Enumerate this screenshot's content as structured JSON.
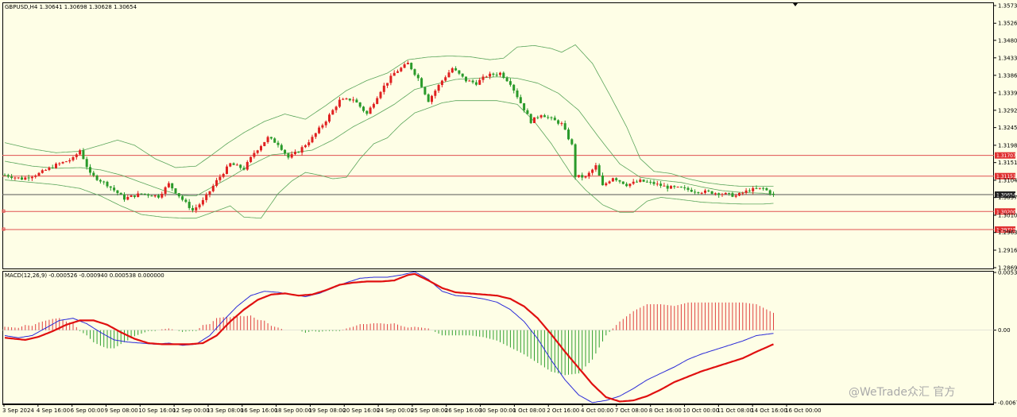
{
  "chart_header": {
    "main": "GBPUSD,H4  1.30641 1.30698 1.30628 1.30654",
    "macd": "MACD(12,26,9) -0.000526 -0.000940 0.000538 0.000000"
  },
  "watermark": "@WeTrade众汇 官方",
  "colors": {
    "background": "#fefee6",
    "bull": "#e02020",
    "bear": "#2a9a2a",
    "bands": "#5aa55a",
    "level_line": "#e05050",
    "current_line": "#555555",
    "macd_line": "#2b2bd8",
    "signal_line": "#e01010",
    "hist_pos": "#e04040",
    "hist_neg": "#30a030"
  },
  "chart_data": [
    {
      "type": "candlestick",
      "title": "GBPUSD,H4",
      "ylim": [
        1.2869,
        1.35735
      ],
      "y_ticks": [
        "1.35735",
        "1.35260",
        "1.34800",
        "1.34330",
        "1.33860",
        "1.33390",
        "1.32920",
        "1.32455",
        "1.31980",
        "1.31515",
        "1.31040",
        "1.30575",
        "1.30100",
        "1.29635",
        "1.29160",
        "1.28690"
      ],
      "x_ticks": [
        "3 Sep 2024",
        "4 Sep 16:00",
        "6 Sep 00:00",
        "9 Sep 08:00",
        "10 Sep 16:00",
        "12 Sep 00:00",
        "13 Sep 08:00",
        "16 Sep 16:00",
        "18 Sep 00:00",
        "19 Sep 08:00",
        "20 Sep 16:00",
        "24 Sep 00:00",
        "25 Sep 08:00",
        "26 Sep 16:00",
        "30 Sep 00:00",
        "1 Oct 08:00",
        "2 Oct 16:00",
        "4 Oct 00:00",
        "7 Oct 08:00",
        "8 Oct 16:00",
        "10 Oct 00:00",
        "11 Oct 08:00",
        "14 Oct 16:00",
        "16 Oct 00:00"
      ],
      "levels": [
        {
          "label": "1.31707",
          "value": 1.31707
        },
        {
          "label": "1.31151",
          "value": 1.31151
        },
        {
          "label": "1.30200",
          "value": 1.302
        },
        {
          "label": "1.29715",
          "value": 1.29715
        }
      ],
      "current": {
        "label": "1.30654",
        "value": 1.30654
      },
      "close_path": [
        [
          0,
          1.3118
        ],
        [
          5,
          1.3108
        ],
        [
          10,
          1.3122
        ],
        [
          15,
          1.3145
        ],
        [
          20,
          1.3162
        ],
        [
          22,
          1.3185
        ],
        [
          25,
          1.312
        ],
        [
          30,
          1.3092
        ],
        [
          35,
          1.3055
        ],
        [
          40,
          1.3068
        ],
        [
          45,
          1.3061
        ],
        [
          48,
          1.3094
        ],
        [
          52,
          1.3052
        ],
        [
          55,
          1.3023
        ],
        [
          58,
          1.3048
        ],
        [
          62,
          1.3102
        ],
        [
          66,
          1.3148
        ],
        [
          70,
          1.3135
        ],
        [
          73,
          1.3178
        ],
        [
          77,
          1.3218
        ],
        [
          80,
          1.3202
        ],
        [
          83,
          1.3165
        ],
        [
          86,
          1.3182
        ],
        [
          90,
          1.3218
        ],
        [
          94,
          1.3265
        ],
        [
          98,
          1.3318
        ],
        [
          102,
          1.3322
        ],
        [
          106,
          1.3282
        ],
        [
          110,
          1.3345
        ],
        [
          114,
          1.3392
        ],
        [
          118,
          1.3418
        ],
        [
          121,
          1.3378
        ],
        [
          124,
          1.3318
        ],
        [
          128,
          1.3372
        ],
        [
          131,
          1.3405
        ],
        [
          135,
          1.3372
        ],
        [
          138,
          1.3365
        ],
        [
          141,
          1.3385
        ],
        [
          145,
          1.3392
        ],
        [
          148,
          1.3365
        ],
        [
          151,
          1.3312
        ],
        [
          154,
          1.3262
        ],
        [
          157,
          1.3282
        ],
        [
          160,
          1.3268
        ],
        [
          163,
          1.3255
        ],
        [
          166,
          1.3198
        ],
        [
          167,
          1.3115
        ],
        [
          170,
          1.3112
        ],
        [
          173,
          1.3142
        ],
        [
          175,
          1.3088
        ],
        [
          178,
          1.3112
        ],
        [
          182,
          1.3092
        ],
        [
          186,
          1.3102
        ],
        [
          190,
          1.3095
        ],
        [
          194,
          1.3085
        ],
        [
          198,
          1.3082
        ],
        [
          202,
          1.3075
        ],
        [
          206,
          1.3072
        ],
        [
          210,
          1.3068
        ],
        [
          214,
          1.3062
        ],
        [
          218,
          1.3078
        ],
        [
          222,
          1.3082
        ],
        [
          225,
          1.30654
        ]
      ],
      "upper_band_path": [
        [
          0,
          1.3205
        ],
        [
          8,
          1.3188
        ],
        [
          15,
          1.3178
        ],
        [
          22,
          1.3182
        ],
        [
          28,
          1.3198
        ],
        [
          33,
          1.3212
        ],
        [
          38,
          1.3198
        ],
        [
          44,
          1.3162
        ],
        [
          50,
          1.3138
        ],
        [
          56,
          1.3142
        ],
        [
          60,
          1.3168
        ],
        [
          65,
          1.3202
        ],
        [
          70,
          1.3232
        ],
        [
          76,
          1.3262
        ],
        [
          82,
          1.3282
        ],
        [
          88,
          1.3268
        ],
        [
          94,
          1.3305
        ],
        [
          100,
          1.3345
        ],
        [
          106,
          1.3372
        ],
        [
          112,
          1.3392
        ],
        [
          118,
          1.3428
        ],
        [
          124,
          1.3435
        ],
        [
          130,
          1.3438
        ],
        [
          136,
          1.3436
        ],
        [
          142,
          1.3428
        ],
        [
          146,
          1.3432
        ],
        [
          150,
          1.3462
        ],
        [
          155,
          1.3466
        ],
        [
          160,
          1.3458
        ],
        [
          163,
          1.3448
        ],
        [
          167,
          1.3468
        ],
        [
          172,
          1.3418
        ],
        [
          177,
          1.3335
        ],
        [
          182,
          1.3248
        ],
        [
          186,
          1.3162
        ],
        [
          190,
          1.3128
        ],
        [
          195,
          1.3122
        ],
        [
          200,
          1.3108
        ],
        [
          205,
          1.3098
        ],
        [
          210,
          1.3092
        ],
        [
          215,
          1.3088
        ],
        [
          220,
          1.3088
        ],
        [
          225,
          1.3088
        ]
      ],
      "middle_band_path": [
        [
          0,
          1.3155
        ],
        [
          8,
          1.3142
        ],
        [
          15,
          1.3136
        ],
        [
          22,
          1.3138
        ],
        [
          28,
          1.3132
        ],
        [
          34,
          1.3118
        ],
        [
          40,
          1.3098
        ],
        [
          46,
          1.3078
        ],
        [
          52,
          1.3063
        ],
        [
          56,
          1.3062
        ],
        [
          60,
          1.3082
        ],
        [
          66,
          1.3112
        ],
        [
          72,
          1.3145
        ],
        [
          78,
          1.3172
        ],
        [
          84,
          1.3178
        ],
        [
          90,
          1.3185
        ],
        [
          96,
          1.3212
        ],
        [
          102,
          1.3248
        ],
        [
          108,
          1.3276
        ],
        [
          114,
          1.3308
        ],
        [
          120,
          1.3348
        ],
        [
          126,
          1.3362
        ],
        [
          132,
          1.3375
        ],
        [
          138,
          1.3378
        ],
        [
          144,
          1.3382
        ],
        [
          150,
          1.3378
        ],
        [
          156,
          1.3365
        ],
        [
          162,
          1.3338
        ],
        [
          168,
          1.3292
        ],
        [
          174,
          1.3218
        ],
        [
          180,
          1.3148
        ],
        [
          186,
          1.3112
        ],
        [
          192,
          1.3104
        ],
        [
          198,
          1.3098
        ],
        [
          204,
          1.3086
        ],
        [
          210,
          1.3076
        ],
        [
          216,
          1.3071
        ],
        [
          222,
          1.3069
        ],
        [
          225,
          1.3066
        ]
      ],
      "lower_band_path": [
        [
          0,
          1.3105
        ],
        [
          8,
          1.3098
        ],
        [
          15,
          1.3092
        ],
        [
          22,
          1.3082
        ],
        [
          28,
          1.3062
        ],
        [
          34,
          1.3035
        ],
        [
          40,
          1.3012
        ],
        [
          46,
          1.3005
        ],
        [
          52,
          1.3002
        ],
        [
          56,
          1.3002
        ],
        [
          60,
          1.3015
        ],
        [
          66,
          1.3035
        ],
        [
          70,
          1.3005
        ],
        [
          75,
          1.3002
        ],
        [
          80,
          1.3068
        ],
        [
          84,
          1.3102
        ],
        [
          88,
          1.3125
        ],
        [
          92,
          1.3118
        ],
        [
          96,
          1.3108
        ],
        [
          100,
          1.3112
        ],
        [
          104,
          1.3162
        ],
        [
          108,
          1.3202
        ],
        [
          112,
          1.3218
        ],
        [
          116,
          1.3255
        ],
        [
          120,
          1.3285
        ],
        [
          124,
          1.3298
        ],
        [
          128,
          1.3312
        ],
        [
          132,
          1.3318
        ],
        [
          138,
          1.3318
        ],
        [
          144,
          1.3318
        ],
        [
          150,
          1.3308
        ],
        [
          155,
          1.3262
        ],
        [
          160,
          1.3202
        ],
        [
          166,
          1.3118
        ],
        [
          170,
          1.3078
        ],
        [
          175,
          1.3038
        ],
        [
          180,
          1.3018
        ],
        [
          184,
          1.3018
        ],
        [
          188,
          1.3048
        ],
        [
          192,
          1.3058
        ],
        [
          198,
          1.3052
        ],
        [
          204,
          1.3045
        ],
        [
          210,
          1.3042
        ],
        [
          216,
          1.304
        ],
        [
          222,
          1.304
        ],
        [
          225,
          1.3042
        ]
      ]
    },
    {
      "type": "line",
      "title": "MACD(12,26,9)",
      "ylim": [
        -0.00671,
        0.00534
      ],
      "y_ticks": [
        "0.00534",
        "0.00",
        "-0.00671"
      ],
      "macd_path": [
        [
          0,
          -0.0005
        ],
        [
          4,
          -0.0007
        ],
        [
          8,
          -0.0005
        ],
        [
          12,
          0.0002
        ],
        [
          16,
          0.0009
        ],
        [
          20,
          0.0011
        ],
        [
          24,
          0.0006
        ],
        [
          28,
          -0.0002
        ],
        [
          32,
          -0.0009
        ],
        [
          36,
          -0.0011
        ],
        [
          40,
          -0.0012
        ],
        [
          44,
          -0.0013
        ],
        [
          48,
          -0.0012
        ],
        [
          52,
          -0.0014
        ],
        [
          56,
          -0.0013
        ],
        [
          60,
          -0.0005
        ],
        [
          64,
          0.0009
        ],
        [
          68,
          0.0022
        ],
        [
          72,
          0.0032
        ],
        [
          76,
          0.0036
        ],
        [
          80,
          0.0035
        ],
        [
          84,
          0.0033
        ],
        [
          88,
          0.0031
        ],
        [
          92,
          0.0034
        ],
        [
          96,
          0.0039
        ],
        [
          100,
          0.0044
        ],
        [
          104,
          0.0048
        ],
        [
          108,
          0.0049
        ],
        [
          112,
          0.0049
        ],
        [
          116,
          0.0051
        ],
        [
          120,
          0.0054
        ],
        [
          124,
          0.0047
        ],
        [
          128,
          0.0036
        ],
        [
          132,
          0.0032
        ],
        [
          136,
          0.0031
        ],
        [
          140,
          0.0029
        ],
        [
          144,
          0.0026
        ],
        [
          148,
          0.0019
        ],
        [
          152,
          0.0008
        ],
        [
          156,
          -0.0008
        ],
        [
          160,
          -0.0028
        ],
        [
          164,
          -0.0046
        ],
        [
          168,
          -0.006
        ],
        [
          172,
          -0.0067
        ],
        [
          176,
          -0.0065
        ],
        [
          180,
          -0.0061
        ],
        [
          184,
          -0.0054
        ],
        [
          188,
          -0.0046
        ],
        [
          192,
          -0.004
        ],
        [
          196,
          -0.0034
        ],
        [
          200,
          -0.0027
        ],
        [
          204,
          -0.0022
        ],
        [
          208,
          -0.0018
        ],
        [
          212,
          -0.0014
        ],
        [
          216,
          -0.001
        ],
        [
          220,
          -0.0005
        ],
        [
          225,
          -0.0003
        ]
      ],
      "signal_path": [
        [
          0,
          -0.0007
        ],
        [
          6,
          -0.0009
        ],
        [
          10,
          -0.0006
        ],
        [
          14,
          -0.0001
        ],
        [
          18,
          0.0005
        ],
        [
          22,
          0.0009
        ],
        [
          26,
          0.0009
        ],
        [
          30,
          0.0005
        ],
        [
          34,
          -0.0002
        ],
        [
          38,
          -0.0008
        ],
        [
          42,
          -0.0012
        ],
        [
          46,
          -0.0013
        ],
        [
          50,
          -0.0013
        ],
        [
          54,
          -0.0013
        ],
        [
          58,
          -0.0012
        ],
        [
          62,
          -0.0005
        ],
        [
          66,
          0.0008
        ],
        [
          70,
          0.0019
        ],
        [
          74,
          0.0028
        ],
        [
          78,
          0.0033
        ],
        [
          82,
          0.0034
        ],
        [
          86,
          0.0032
        ],
        [
          90,
          0.0033
        ],
        [
          94,
          0.0037
        ],
        [
          98,
          0.0042
        ],
        [
          102,
          0.0044
        ],
        [
          106,
          0.0045
        ],
        [
          110,
          0.0045
        ],
        [
          114,
          0.0046
        ],
        [
          118,
          0.0051
        ],
        [
          120,
          0.0052
        ],
        [
          124,
          0.0046
        ],
        [
          128,
          0.0039
        ],
        [
          132,
          0.0035
        ],
        [
          136,
          0.0034
        ],
        [
          140,
          0.0033
        ],
        [
          144,
          0.0032
        ],
        [
          148,
          0.0029
        ],
        [
          152,
          0.0022
        ],
        [
          156,
          0.0011
        ],
        [
          160,
          -0.0004
        ],
        [
          164,
          -0.002
        ],
        [
          168,
          -0.0035
        ],
        [
          172,
          -0.005
        ],
        [
          176,
          -0.0062
        ],
        [
          180,
          -0.0066
        ],
        [
          184,
          -0.0065
        ],
        [
          188,
          -0.0061
        ],
        [
          192,
          -0.0055
        ],
        [
          196,
          -0.0048
        ],
        [
          200,
          -0.0043
        ],
        [
          204,
          -0.0038
        ],
        [
          208,
          -0.0034
        ],
        [
          212,
          -0.003
        ],
        [
          216,
          -0.0026
        ],
        [
          220,
          -0.002
        ],
        [
          225,
          -0.0013
        ]
      ]
    }
  ]
}
